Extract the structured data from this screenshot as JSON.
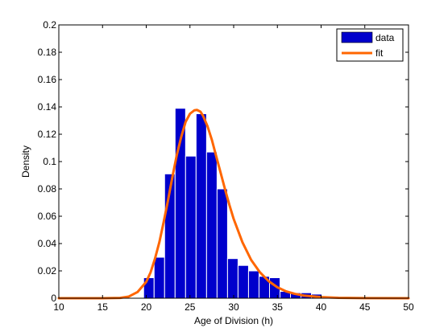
{
  "figure_background": "#ffffff",
  "chart_data": {
    "type": "bar",
    "title": "",
    "xlabel": "Age of Division (h)",
    "ylabel": "Density",
    "xlim": [
      10,
      50
    ],
    "ylim": [
      0,
      0.2
    ],
    "xticks": [
      10,
      15,
      20,
      25,
      30,
      35,
      40,
      45,
      50
    ],
    "yticks": [
      0,
      0.02,
      0.04,
      0.06,
      0.08,
      0.1,
      0.12,
      0.14,
      0.16,
      0.18,
      0.2
    ],
    "xtick_labels": [
      "10",
      "15",
      "20",
      "25",
      "30",
      "35",
      "40",
      "45",
      "50"
    ],
    "ytick_labels": [
      "0",
      "0.02",
      "0.04",
      "0.06",
      "0.08",
      "0.1",
      "0.12",
      "0.14",
      "0.16",
      "0.18",
      "0.2"
    ],
    "grid": false,
    "legend_position": "top-right",
    "series": [
      {
        "name": "data",
        "kind": "histogram",
        "color": "#0000cc",
        "edge_color": "#ffffff",
        "bin_width": 1.2,
        "bin_centers": [
          20.3,
          21.5,
          22.7,
          23.9,
          25.1,
          26.3,
          27.5,
          28.7,
          29.9,
          31.1,
          32.3,
          33.5,
          34.7,
          35.9,
          37.1,
          38.3,
          39.5
        ],
        "values": [
          0.015,
          0.03,
          0.091,
          0.139,
          0.104,
          0.135,
          0.107,
          0.08,
          0.029,
          0.024,
          0.02,
          0.016,
          0.015,
          0.005,
          0.004,
          0.004,
          0.003
        ]
      },
      {
        "name": "fit",
        "kind": "line",
        "color": "#ff6600",
        "x": [
          10,
          15,
          17,
          18,
          19,
          20,
          20.5,
          21,
          21.5,
          22,
          22.5,
          23,
          23.5,
          24,
          24.5,
          25,
          25.5,
          25.8,
          26.2,
          26.5,
          27,
          27.5,
          28,
          28.5,
          29,
          29.5,
          30,
          31,
          32,
          33,
          34,
          35,
          36,
          37,
          38,
          40,
          42,
          45,
          50
        ],
        "y": [
          0,
          0,
          0.0002,
          0.0012,
          0.0045,
          0.012,
          0.019,
          0.029,
          0.041,
          0.056,
          0.072,
          0.089,
          0.105,
          0.118,
          0.129,
          0.135,
          0.1375,
          0.1378,
          0.1365,
          0.1335,
          0.126,
          0.116,
          0.104,
          0.092,
          0.08,
          0.0685,
          0.058,
          0.041,
          0.028,
          0.019,
          0.0125,
          0.008,
          0.005,
          0.0032,
          0.002,
          0.0008,
          0.0003,
          0.0001,
          0
        ]
      }
    ]
  }
}
